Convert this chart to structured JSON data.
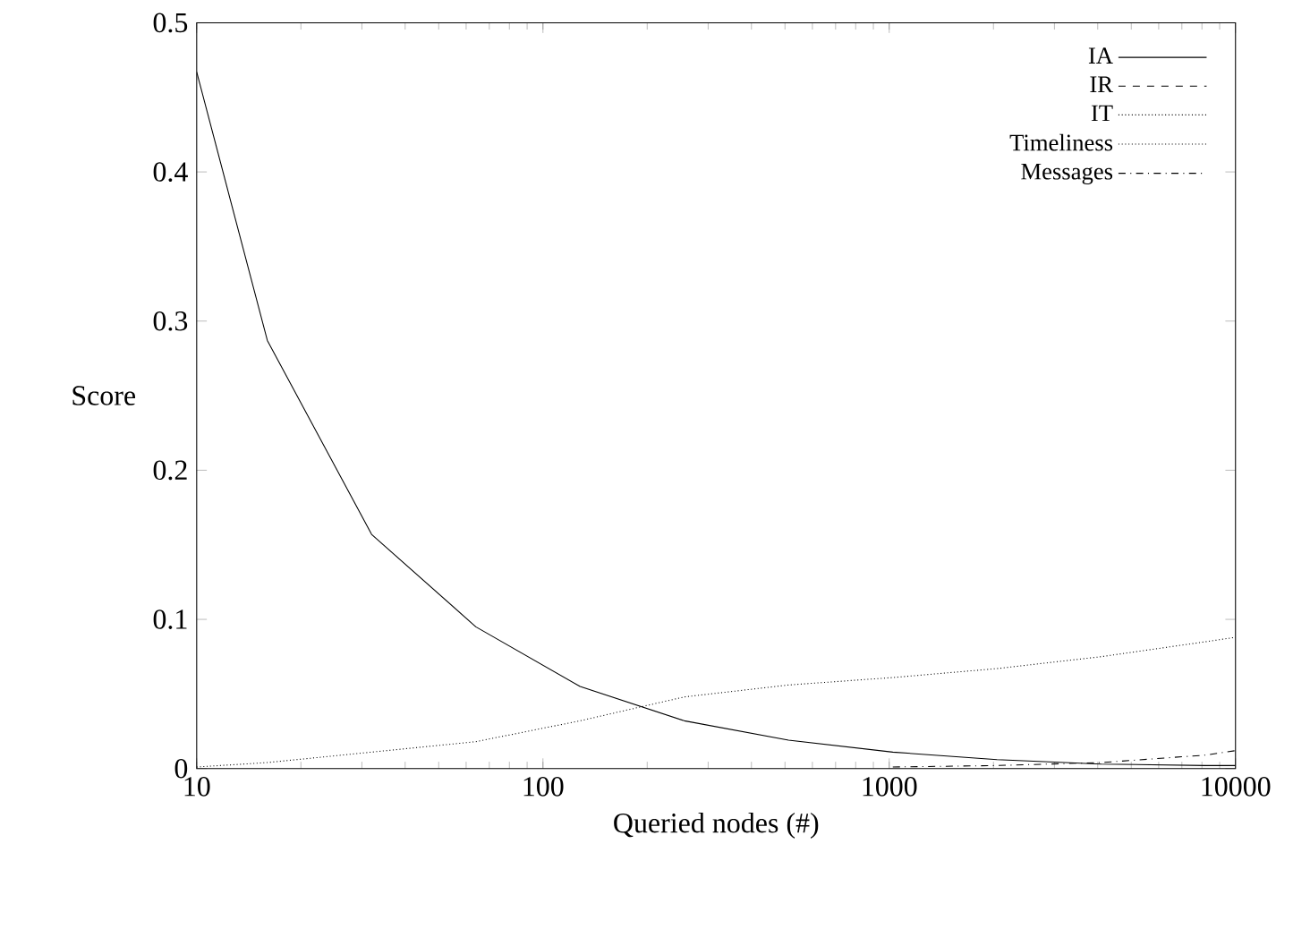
{
  "chart_data": {
    "type": "line",
    "xlabel": "Queried nodes (#)",
    "ylabel": "Score",
    "log": "x",
    "x": [
      10,
      16,
      32,
      64,
      128,
      256,
      512,
      1024,
      2048,
      4096,
      8192,
      10000
    ],
    "series": [
      {
        "name": "IA",
        "color": "#000000",
        "line_style": "solid",
        "values": [
          0.467,
          0.287,
          0.157,
          0.095,
          0.055,
          0.032,
          0.019,
          0.011,
          0.006,
          0.003,
          0.002,
          0.002
        ]
      },
      {
        "name": "IR",
        "color": "#000000",
        "line_style": "dashed",
        "values": [
          null,
          null,
          null,
          null,
          null,
          null,
          null,
          null,
          null,
          null,
          null,
          null
        ]
      },
      {
        "name": "IT",
        "color": "#000000",
        "line_style": "dotted",
        "values": [
          null,
          null,
          null,
          null,
          null,
          null,
          null,
          null,
          null,
          null,
          null,
          null
        ]
      },
      {
        "name": "Timeliness",
        "color": "#000000",
        "line_style": "dotted",
        "values": [
          0.001,
          0.004,
          0.011,
          0.018,
          0.032,
          0.048,
          0.056,
          0.061,
          0.067,
          0.075,
          0.085,
          0.088
        ]
      },
      {
        "name": "Messages",
        "color": "#000000",
        "line_style": "dashdotted",
        "values": [
          null,
          null,
          null,
          null,
          null,
          null,
          null,
          0.001,
          0.002,
          0.004,
          0.009,
          0.012
        ]
      }
    ],
    "xlim": [
      10,
      10000
    ],
    "ylim": [
      0,
      0.5
    ],
    "xticks": [
      10,
      100,
      1000,
      10000
    ],
    "yticks": [
      0,
      0.1,
      0.2,
      0.3,
      0.4,
      0.5
    ],
    "legend": "top right",
    "grid": false,
    "marker": "none"
  }
}
